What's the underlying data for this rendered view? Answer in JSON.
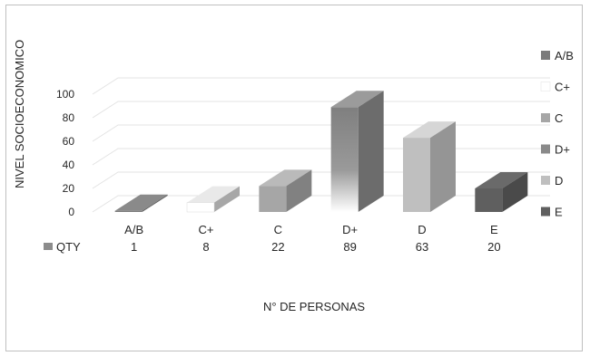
{
  "chart_data": {
    "type": "bar",
    "ylabel": "NIVEL SOCIOECONOMICO",
    "xlabel": "N° DE PERSONAS",
    "categories": [
      "A/B",
      "C+",
      "C",
      "D+",
      "D",
      "E"
    ],
    "series": [
      {
        "name": "QTY",
        "values": [
          1,
          8,
          22,
          89,
          63,
          20
        ]
      }
    ],
    "yticks": [
      0,
      20,
      40,
      60,
      80,
      100
    ],
    "ylim": [
      0,
      100
    ],
    "legend": {
      "position": "right",
      "entries": [
        "A/B",
        "C+",
        "C",
        "D+",
        "D",
        "E"
      ]
    },
    "colors": {
      "A/B": "#7b7b7b",
      "C+": "#ffffff",
      "C": "#a6a6a6",
      "D+": "#8a8a8a",
      "D": "#bfbfbf",
      "E": "#5f5f5f"
    },
    "data_table": true
  }
}
